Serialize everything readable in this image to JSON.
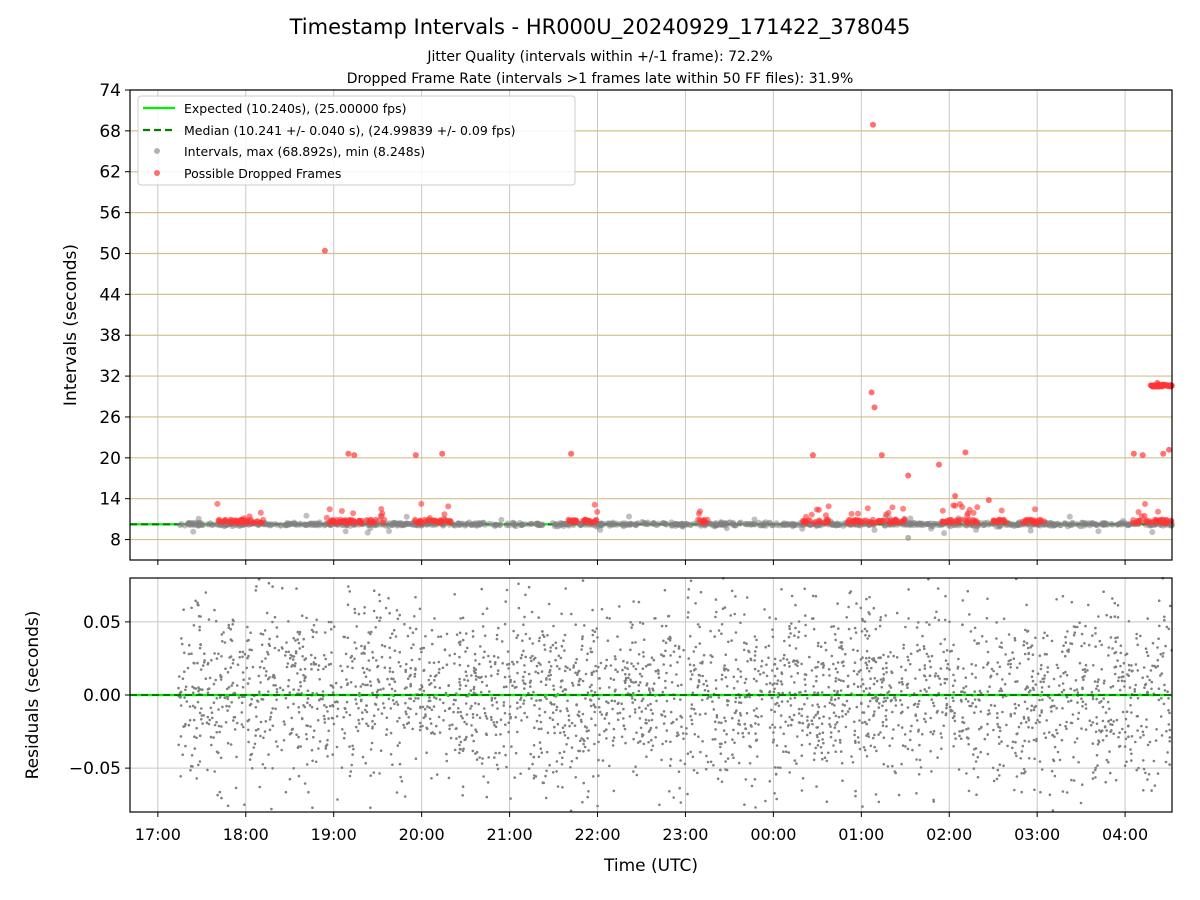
{
  "figure": {
    "title": "Timestamp Intervals - HR000U_20240929_171422_378045",
    "subtitle_jitter": "Jitter Quality (intervals within +/-1 frame): 72.2%",
    "subtitle_dropped": "Dropped Frame Rate (intervals >1 frames late within 50 FF files): 31.9%"
  },
  "chart_data": [
    {
      "type": "scatter",
      "panel": "intervals",
      "xlabel": "",
      "ylabel": "Intervals (seconds)",
      "ylim": [
        5,
        74
      ],
      "yticks": [
        "8",
        "14",
        "20",
        "26",
        "32",
        "38",
        "44",
        "50",
        "56",
        "62",
        "68",
        "74"
      ],
      "grid": "horizontal lines (goldenrod) and vertical lines (gray)",
      "legend_position": "top-left",
      "legend": [
        {
          "label": "Expected (10.240s), (25.00000 fps)",
          "style": "solid-line",
          "color": "#00ee00"
        },
        {
          "label": "Median (10.241 +/- 0.040 s), (24.99839 +/- 0.09 fps)",
          "style": "dashed-line",
          "color": "#008000"
        },
        {
          "label": "Intervals, max (68.892s), min (8.248s)",
          "style": "marker",
          "color": "#808080"
        },
        {
          "label": "Possible Dropped Frames",
          "style": "marker",
          "color": "#ff3333"
        }
      ],
      "expected_interval": 10.24,
      "median_interval": 10.241,
      "max_interval": 68.892,
      "min_interval": 8.248,
      "dropped_frame_points": [
        {
          "x": "18:54",
          "y": 50.4
        },
        {
          "x": "19:10",
          "y": 20.6
        },
        {
          "x": "19:14",
          "y": 20.4
        },
        {
          "x": "19:56",
          "y": 20.4
        },
        {
          "x": "20:14",
          "y": 20.6
        },
        {
          "x": "21:42",
          "y": 20.6
        },
        {
          "x": "00:27",
          "y": 20.4
        },
        {
          "x": "01:08",
          "y": 68.9
        },
        {
          "x": "01:07",
          "y": 29.6
        },
        {
          "x": "01:09",
          "y": 27.4
        },
        {
          "x": "01:14",
          "y": 20.4
        },
        {
          "x": "01:32",
          "y": 17.4
        },
        {
          "x": "01:53",
          "y": 19.0
        },
        {
          "x": "02:04",
          "y": 14.4
        },
        {
          "x": "02:11",
          "y": 20.8
        },
        {
          "x": "02:27",
          "y": 13.8
        },
        {
          "x": "04:06",
          "y": 20.6
        },
        {
          "x": "04:12",
          "y": 20.4
        },
        {
          "x": "04:18",
          "y": 30.6
        },
        {
          "x": "04:22",
          "y": 31.0
        },
        {
          "x": "04:28",
          "y": 30.6
        },
        {
          "x": "04:30",
          "y": 21.2
        },
        {
          "x": "04:26",
          "y": 20.6
        }
      ]
    },
    {
      "type": "scatter",
      "panel": "residuals",
      "xlabel": "Time (UTC)",
      "ylabel": "Residuals (seconds)",
      "ylim": [
        -0.08,
        0.08
      ],
      "yticks": [
        "−0.05",
        "0.00",
        "0.05"
      ],
      "xticks": [
        "17:00",
        "18:00",
        "19:00",
        "20:00",
        "21:00",
        "22:00",
        "23:00",
        "00:00",
        "01:00",
        "02:00",
        "03:00",
        "04:00"
      ],
      "x_range_utc": [
        "16:41",
        "04:32"
      ],
      "data_range_utc": [
        "17:14",
        "04:32"
      ],
      "reference_line": 0.0,
      "grid": "both axes (gray)"
    }
  ],
  "colors": {
    "expected_line": "#00ee00",
    "median_line": "#008000",
    "interval_marker": "#808080",
    "dropped_marker": "#ff3333",
    "hgrid_top": "#d4c088",
    "grid": "#c8c8c8",
    "residual_marker": "#808080"
  }
}
